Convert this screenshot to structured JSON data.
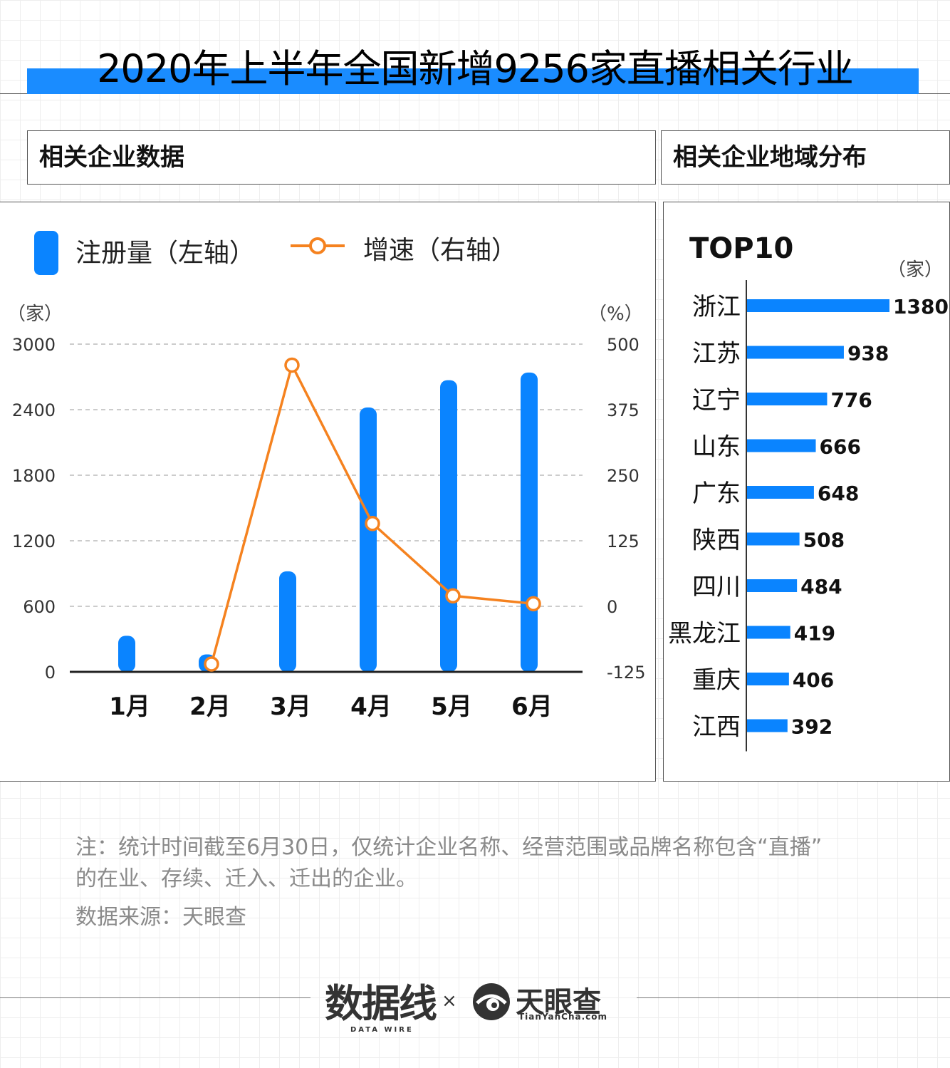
{
  "page_title": "2020年上半年全国新增9256家直播相关行业",
  "panels": {
    "left_title": "相关企业数据",
    "right_title": "相关企业地域分布"
  },
  "legend": {
    "bar_label": "注册量（左轴）",
    "line_label": "增速（右轴）"
  },
  "units": {
    "left": "（家）",
    "right": "（%）",
    "top10": "（家）"
  },
  "top10_label": "TOP10",
  "colors": {
    "bar": "#0a84ff",
    "line": "#f5821f",
    "title_highlight": "#1a8cff"
  },
  "chart_data": [
    {
      "type": "bar+line",
      "categories": [
        "1月",
        "2月",
        "3月",
        "4月",
        "5月",
        "6月"
      ],
      "series": [
        {
          "name": "注册量（左轴）",
          "type": "bar",
          "axis": "left",
          "values": [
            330,
            160,
            920,
            2420,
            2670,
            2740
          ]
        },
        {
          "name": "增速（右轴）",
          "type": "line",
          "axis": "right",
          "values": [
            null,
            -110,
            460,
            158,
            20,
            5
          ]
        }
      ],
      "yleft": {
        "ticks": [
          "3000",
          "2400",
          "1800",
          "1200",
          "600",
          "0"
        ],
        "ylim": [
          0,
          3000
        ]
      },
      "yright": {
        "ticks": [
          "500",
          "375",
          "250",
          "125",
          "0",
          "-125"
        ],
        "ylim": [
          -125,
          500
        ]
      },
      "grid": "dashed horizontal"
    },
    {
      "type": "bar",
      "orientation": "horizontal",
      "categories": [
        "浙江",
        "江苏",
        "辽宁",
        "山东",
        "广东",
        "陕西",
        "四川",
        "黑龙江",
        "重庆",
        "江西"
      ],
      "values": [
        1380,
        938,
        776,
        666,
        648,
        508,
        484,
        419,
        406,
        392
      ],
      "value_labels": [
        "1380",
        "938",
        "776",
        "666",
        "648",
        "508",
        "484",
        "419",
        "406",
        "392"
      ]
    }
  ],
  "notes": {
    "line1": "注：统计时间截至6月30日，仅统计企业名称、经营范围或品牌名称包含“直播”",
    "line2": "的在业、存续、迁入、迁出的企业。",
    "source": "数据来源：天眼查"
  },
  "footer": {
    "brand_a": "数据线",
    "brand_a_sub": "DATA WIRE",
    "separator": "×",
    "brand_b": "天眼查",
    "brand_b_sub": "TianYanCha.com"
  }
}
